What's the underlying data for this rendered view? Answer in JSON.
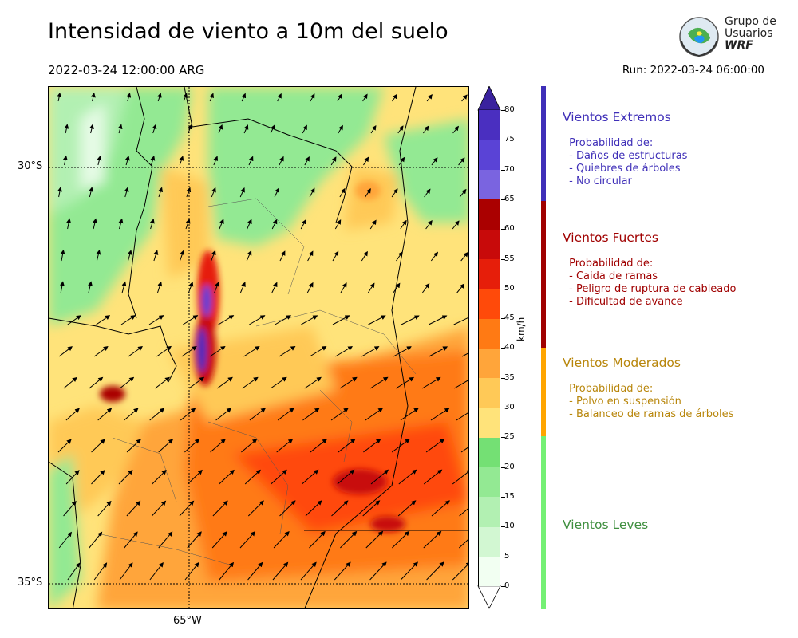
{
  "header": {
    "title": "Intensidad de viento a 10m del suelo",
    "valid_time": "2022-03-24 12:00:00 ARG",
    "run_time": "Run: 2022-03-24 06:00:00"
  },
  "logo": {
    "line1": "Grupo de",
    "line2": "Usuarios",
    "line3": "WRF"
  },
  "map": {
    "lat_labels": [
      "30°S",
      "35°S"
    ],
    "lon_labels": [
      "65°W"
    ]
  },
  "colorbar": {
    "unit": "km/h",
    "ticks": [
      "0",
      "5",
      "10",
      "15",
      "20",
      "25",
      "30",
      "35",
      "40",
      "45",
      "50",
      "55",
      "60",
      "65",
      "70",
      "75",
      "80"
    ],
    "colors": [
      "#f2fff2",
      "#d2f7d2",
      "#b2f0b2",
      "#93e993",
      "#74e074",
      "#ffe37a",
      "#ffc957",
      "#ffa53a",
      "#ff7a14",
      "#ff4a0a",
      "#e61e0a",
      "#c80a0a",
      "#aa0000",
      "#7a64e0",
      "#5a43d6",
      "#4a2fc0"
    ]
  },
  "legend": {
    "extreme": {
      "title": "Vientos Extremos",
      "desc": " Probabilidad de:\n - Daños de estructuras\n - Quiebres de árboles\n - No circular",
      "color": "#3f2fb8"
    },
    "strong": {
      "title": "Vientos Fuertes",
      "desc": " Probabilidad de:\n - Caida de ramas\n - Peligro de ruptura de cableado\n - Dificultad de avance",
      "color": "#a00000"
    },
    "moderate": {
      "title": "Vientos Moderados",
      "desc": " Probabilidad de:\n - Polvo en suspensión\n - Balanceo de ramas de árboles",
      "color": "#b8860b",
      "bar_color": "#ffa500"
    },
    "light": {
      "title": "Vientos Leves",
      "color": "#3f8f3f",
      "bar_color": "#74f074"
    }
  }
}
